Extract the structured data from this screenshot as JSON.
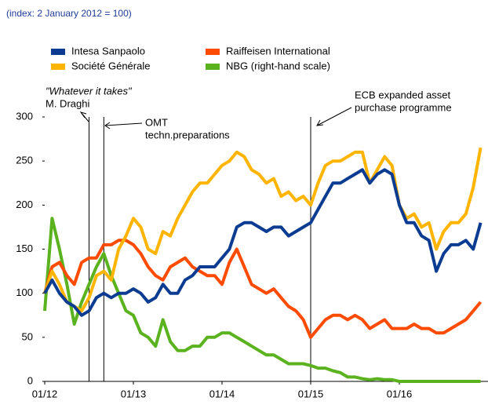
{
  "chart_data": {
    "type": "line",
    "subtitle": "(index: 2 January 2012 = 100)",
    "x": [
      "2012-01",
      "2012-02",
      "2012-03",
      "2012-04",
      "2012-05",
      "2012-06",
      "2012-07",
      "2012-08",
      "2012-09",
      "2012-10",
      "2012-11",
      "2012-12",
      "2013-01",
      "2013-02",
      "2013-03",
      "2013-04",
      "2013-05",
      "2013-06",
      "2013-07",
      "2013-08",
      "2013-09",
      "2013-10",
      "2013-11",
      "2013-12",
      "2014-01",
      "2014-02",
      "2014-03",
      "2014-04",
      "2014-05",
      "2014-06",
      "2014-07",
      "2014-08",
      "2014-09",
      "2014-10",
      "2014-11",
      "2014-12",
      "2015-01",
      "2015-02",
      "2015-03",
      "2015-04",
      "2015-05",
      "2015-06",
      "2015-07",
      "2015-08",
      "2015-09",
      "2015-10",
      "2015-11",
      "2015-12",
      "2016-01",
      "2016-02",
      "2016-03",
      "2016-04",
      "2016-05",
      "2016-06",
      "2016-07",
      "2016-08",
      "2016-09",
      "2016-10",
      "2016-11",
      "2016-12"
    ],
    "series": [
      {
        "name": "Intesa Sanpaolo",
        "color": "#0b3c91",
        "values": [
          100,
          115,
          100,
          90,
          85,
          75,
          80,
          95,
          100,
          95,
          100,
          100,
          105,
          100,
          90,
          95,
          110,
          100,
          100,
          115,
          120,
          130,
          130,
          130,
          140,
          150,
          175,
          180,
          180,
          175,
          170,
          175,
          175,
          165,
          170,
          175,
          180,
          195,
          210,
          225,
          225,
          230,
          235,
          240,
          225,
          235,
          240,
          235,
          200,
          180,
          180,
          165,
          160,
          125,
          145,
          155,
          155,
          160,
          150,
          180
        ]
      },
      {
        "name": "Raiffeisen International",
        "color": "#ff4b00",
        "values": [
          100,
          130,
          135,
          120,
          110,
          135,
          140,
          140,
          155,
          155,
          160,
          160,
          155,
          145,
          130,
          120,
          115,
          130,
          135,
          140,
          130,
          125,
          120,
          120,
          110,
          135,
          150,
          130,
          110,
          105,
          100,
          105,
          95,
          85,
          80,
          70,
          50,
          60,
          70,
          75,
          75,
          70,
          75,
          70,
          60,
          65,
          70,
          60,
          60,
          60,
          65,
          60,
          60,
          55,
          55,
          60,
          65,
          70,
          80,
          90
        ]
      },
      {
        "name": "Société Générale",
        "color": "#ffb400",
        "values": [
          100,
          125,
          110,
          90,
          85,
          80,
          95,
          120,
          125,
          115,
          150,
          165,
          185,
          175,
          150,
          145,
          170,
          165,
          185,
          200,
          215,
          225,
          225,
          235,
          245,
          250,
          260,
          255,
          240,
          235,
          225,
          230,
          210,
          215,
          205,
          210,
          200,
          225,
          245,
          250,
          250,
          255,
          260,
          260,
          225,
          240,
          255,
          245,
          200,
          185,
          190,
          175,
          180,
          150,
          170,
          180,
          180,
          190,
          220,
          265
        ]
      },
      {
        "name": "NBG (right-hand scale)",
        "color": "#5ab31e",
        "values": [
          80,
          185,
          150,
          110,
          65,
          90,
          110,
          130,
          145,
          120,
          100,
          80,
          75,
          55,
          50,
          40,
          70,
          45,
          35,
          35,
          40,
          40,
          50,
          50,
          55,
          55,
          50,
          45,
          40,
          35,
          30,
          30,
          25,
          20,
          20,
          20,
          18,
          15,
          15,
          12,
          10,
          5,
          5,
          3,
          2,
          3,
          2,
          2,
          0,
          0,
          0,
          0,
          0,
          0,
          0,
          0,
          0,
          0,
          0,
          0
        ]
      }
    ],
    "ylim": [
      0,
      300
    ],
    "yticks": [
      0,
      50,
      100,
      150,
      200,
      250,
      300
    ],
    "xticks": [
      {
        "value": "2012-01",
        "label": "01/12"
      },
      {
        "value": "2013-01",
        "label": "01/13"
      },
      {
        "value": "2014-01",
        "label": "01/14"
      },
      {
        "value": "2015-01",
        "label": "01/15"
      },
      {
        "value": "2016-01",
        "label": "01/16"
      }
    ],
    "annotations": [
      {
        "x": "2012-07",
        "lines": [
          "\"Whatever it takes\"",
          "M. Draghi"
        ]
      },
      {
        "x": "2012-09",
        "lines": [
          "OMT",
          "techn.preparations"
        ]
      },
      {
        "x": "2015-01",
        "lines": [
          "ECB expanded asset",
          "purchase programme"
        ]
      }
    ]
  }
}
